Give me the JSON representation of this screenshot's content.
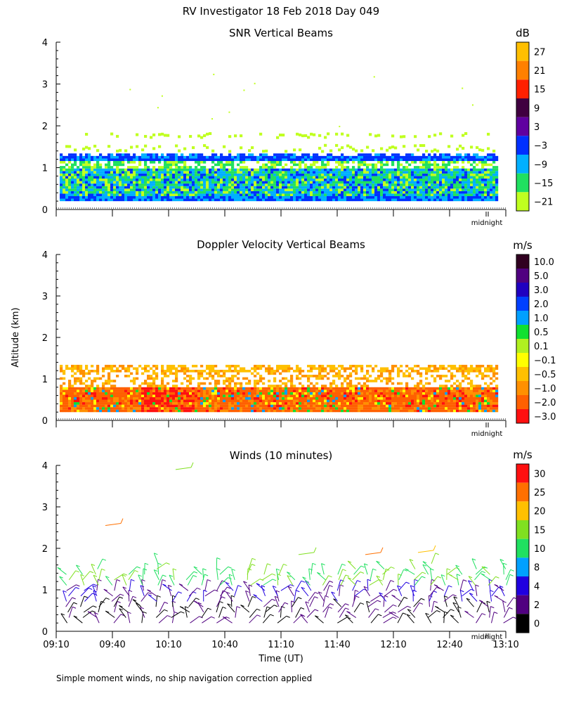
{
  "figure": {
    "title": "RV Investigator  18 Feb 2018 Day 049",
    "ylabel": "Altitude (km)",
    "xlabel": "Time (UT)",
    "footnote": "Simple moment winds, no ship navigation correction applied",
    "midnight_label": "midnight"
  },
  "chart_data": [
    {
      "type": "heatmap",
      "title": "SNR Vertical Beams",
      "ylim": [
        0,
        4
      ],
      "yticks": [
        "0",
        "1",
        "2",
        "3",
        "4"
      ],
      "colorbar": {
        "unit": "dB",
        "labels": [
          "27",
          "21",
          "15",
          "9",
          "3",
          "−3",
          "−9",
          "−15",
          "−21"
        ],
        "colors": [
          "#ffbf00",
          "#ff8000",
          "#ff2000",
          "#400040",
          "#6000a0",
          "#0030ff",
          "#00b0ff",
          "#20e060",
          "#c0ff20"
        ]
      }
    },
    {
      "type": "heatmap",
      "title": "Doppler Velocity Vertical Beams",
      "ylim": [
        0,
        4
      ],
      "yticks": [
        "0",
        "1",
        "2",
        "3",
        "4"
      ],
      "colorbar": {
        "unit": "m/s",
        "labels": [
          "10.0",
          "5.0",
          "3.0",
          "2.0",
          "1.0",
          "0.5",
          "0.1",
          "−0.1",
          "−0.5",
          "−1.0",
          "−2.0",
          "−3.0"
        ],
        "colors": [
          "#300020",
          "#500080",
          "#2000c0",
          "#0040ff",
          "#00a0ff",
          "#10e030",
          "#b0f020",
          "#ffff00",
          "#ffc000",
          "#ff9000",
          "#ff6000",
          "#ff1010"
        ]
      }
    },
    {
      "type": "scatter",
      "title": "Winds (10 minutes)",
      "ylim": [
        0,
        4
      ],
      "yticks": [
        "0",
        "1",
        "2",
        "3",
        "4"
      ],
      "xticks": [
        "09:10",
        "09:40",
        "10:10",
        "10:40",
        "11:10",
        "11:40",
        "12:10",
        "12:40",
        "13:10"
      ],
      "colorbar": {
        "unit": "m/s",
        "labels": [
          "30",
          "25",
          "20",
          "15",
          "10",
          "8",
          "4",
          "2",
          "0"
        ],
        "colors": [
          "#ff1010",
          "#ff7000",
          "#ffc000",
          "#80e020",
          "#20e060",
          "#00a0ff",
          "#2000e0",
          "#500080",
          "#000000"
        ]
      }
    }
  ]
}
